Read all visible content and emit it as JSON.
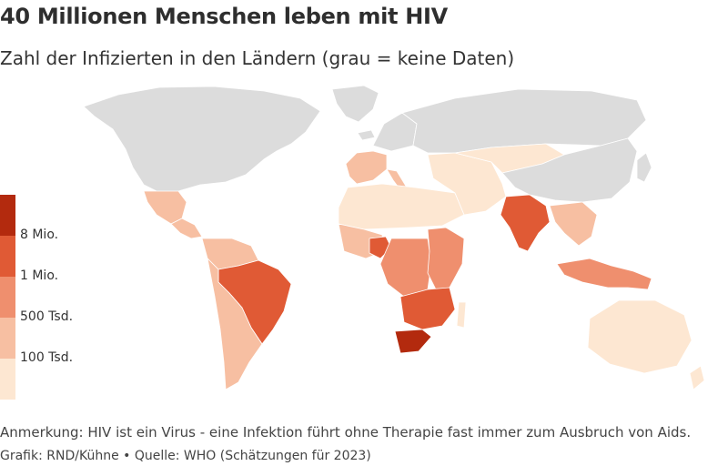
{
  "header": {
    "title": "40 Millionen Menschen leben mit HIV",
    "subtitle": "Zahl der Infizierten in den Ländern (grau = keine Daten)"
  },
  "legend": {
    "bins": [
      {
        "color": "#b32a0e"
      },
      {
        "color": "#e05a35"
      },
      {
        "color": "#ef8f6e"
      },
      {
        "color": "#f7bfa2"
      },
      {
        "color": "#fde7d2"
      }
    ],
    "labels": [
      "8 Mio.",
      "1 Mio.",
      "500 Tsd.",
      "100 Tsd."
    ]
  },
  "map": {
    "no_data_color": "#dcdcdc",
    "regions": [
      {
        "name": "greenland",
        "fill": "no_data"
      },
      {
        "name": "canada-usa",
        "fill": "no_data"
      },
      {
        "name": "mexico",
        "fill": "#f7bfa2"
      },
      {
        "name": "central-america",
        "fill": "#f7bfa2"
      },
      {
        "name": "south-america-north",
        "fill": "#f7bfa2"
      },
      {
        "name": "brazil",
        "fill": "#e05a35"
      },
      {
        "name": "south-america-south",
        "fill": "#f7bfa2"
      },
      {
        "name": "iceland",
        "fill": "no_data"
      },
      {
        "name": "europe-northeast",
        "fill": "no_data"
      },
      {
        "name": "europe-west",
        "fill": "#f7bfa2"
      },
      {
        "name": "italy",
        "fill": "#f7bfa2"
      },
      {
        "name": "russia",
        "fill": "no_data"
      },
      {
        "name": "north-africa",
        "fill": "#fde7d2"
      },
      {
        "name": "middle-east",
        "fill": "#fde7d2"
      },
      {
        "name": "central-asia",
        "fill": "#fde7d2"
      },
      {
        "name": "china",
        "fill": "no_data"
      },
      {
        "name": "japan",
        "fill": "no_data"
      },
      {
        "name": "india",
        "fill": "#e05a35"
      },
      {
        "name": "southeast-asia",
        "fill": "#f7bfa2"
      },
      {
        "name": "indonesia",
        "fill": "#ef8f6e"
      },
      {
        "name": "west-africa",
        "fill": "#f7bfa2"
      },
      {
        "name": "nigeria",
        "fill": "#e05a35"
      },
      {
        "name": "central-africa",
        "fill": "#ef8f6e"
      },
      {
        "name": "east-africa",
        "fill": "#ef8f6e"
      },
      {
        "name": "southern-africa",
        "fill": "#e05a35"
      },
      {
        "name": "south-africa",
        "fill": "#b32a0e"
      },
      {
        "name": "madagascar",
        "fill": "#fde7d2"
      },
      {
        "name": "australia",
        "fill": "#fde7d2"
      },
      {
        "name": "new-zealand",
        "fill": "#fde7d2"
      }
    ]
  },
  "footer": {
    "note": "Anmerkung: HIV ist ein Virus - eine Infektion führt ohne Therapie fast immer zum Ausbruch von Aids.",
    "credit": "Grafik: RND/Kühne • Quelle: WHO (Schätzungen für 2023)"
  }
}
